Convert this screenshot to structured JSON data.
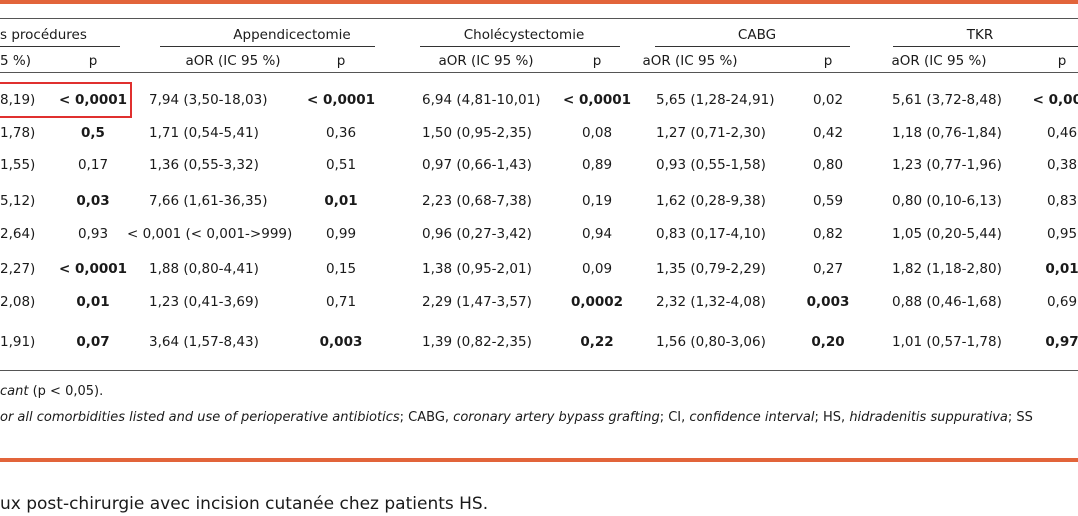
{
  "headers": {
    "group0": "s procédures",
    "group1": "Appendicectomie",
    "group2": "Cholécystectomie",
    "group3": "CABG",
    "group4": "TKR",
    "sub_or0": "5 %)",
    "sub_p0": "p",
    "sub_or1": "aOR (IC 95 %)",
    "sub_p1": "p",
    "sub_or2": "aOR (IC 95 %)",
    "sub_p2": "p",
    "sub_or3": "aOR (IC 95 %)",
    "sub_p3": "p",
    "sub_or4": "aOR (IC 95 %)",
    "sub_p4": "p"
  },
  "rows": [
    {
      "or0": "8,19)",
      "p0": "< 0,0001",
      "or1": "7,94 (3,50-18,03)",
      "p1": "< 0,0001",
      "or2": "6,94 (4,81-10,01)",
      "p2": "< 0,0001",
      "or3": "5,65 (1,28-24,91)",
      "p3": "0,02",
      "or4": "5,61 (3,72-8,48)",
      "p4": "< 0,000"
    },
    {
      "or0": "1,78)",
      "p0": "0,5",
      "or1": "1,71 (0,54-5,41)",
      "p1": "0,36",
      "or2": "1,50 (0,95-2,35)",
      "p2": "0,08",
      "or3": "1,27 (0,71-2,30)",
      "p3": "0,42",
      "or4": "1,18 (0,76-1,84)",
      "p4": "0,46"
    },
    {
      "or0": "1,55)",
      "p0": "0,17",
      "or1": "1,36 (0,55-3,32)",
      "p1": "0,51",
      "or2": "0,97 (0,66-1,43)",
      "p2": "0,89",
      "or3": "0,93 (0,55-1,58)",
      "p3": "0,80",
      "or4": "1,23 (0,77-1,96)",
      "p4": "0,38"
    },
    {
      "or0": "5,12)",
      "p0": "0,03",
      "or1": "7,66 (1,61-36,35)",
      "p1": "0,01",
      "or2": "2,23 (0,68-7,38)",
      "p2": "0,19",
      "or3": "1,62 (0,28-9,38)",
      "p3": "0,59",
      "or4": "0,80 (0,10-6,13)",
      "p4": "0,83"
    },
    {
      "or0": "2,64)",
      "p0": "0,93",
      "or1": "< 0,001 (< 0,001->999)",
      "p1": "0,99",
      "or2": "0,96 (0,27-3,42)",
      "p2": "0,94",
      "or3": "0,83 (0,17-4,10)",
      "p3": "0,82",
      "or4": "1,05 (0,20-5,44)",
      "p4": "0,95"
    },
    {
      "or0": "2,27)",
      "p0": "< 0,0001",
      "or1": "1,88 (0,80-4,41)",
      "p1": "0,15",
      "or2": "1,38 (0,95-2,01)",
      "p2": "0,09",
      "or3": "1,35 (0,79-2,29)",
      "p3": "0,27",
      "or4": "1,82 (1,18-2,80)",
      "p4": "0,01"
    },
    {
      "or0": "2,08)",
      "p0": "0,01",
      "or1": "1,23 (0,41-3,69)",
      "p1": "0,71",
      "or2": "2,29 (1,47-3,57)",
      "p2": "0,0002",
      "or3": "2,32 (1,32-4,08)",
      "p3": "0,003",
      "or4": "0,88 (0,46-1,68)",
      "p4": "0,69"
    },
    {
      "or0": "1,91)",
      "p0": "0,07",
      "or1": "3,64 (1,57-8,43)",
      "p1": "0,003",
      "or2": "1,39 (0,82-2,35)",
      "p2": "0,22",
      "or3": "1,56 (0,80-3,06)",
      "p3": "0,20",
      "or4": "1,01 (0,57-1,78)",
      "p4": "0,97"
    }
  ],
  "notes": {
    "line1_italic": "cant",
    "line1_rest": " (p < 0,05).",
    "line2_a": "or all comorbidities listed and use of perioperative antibiotics",
    "line2_b": "; CABG, ",
    "line2_c": "coronary artery bypass grafting",
    "line2_d": "; CI, ",
    "line2_e": "confidence interval",
    "line2_f": "; HS, ",
    "line2_g": "hidradenitis suppurativa",
    "line2_h": "; SS"
  },
  "caption": "ux post-chirurgie avec incision cutanée chez patients HS.",
  "colors": {
    "accent_bar": "#e2643a",
    "highlight_box": "#e0302f"
  }
}
